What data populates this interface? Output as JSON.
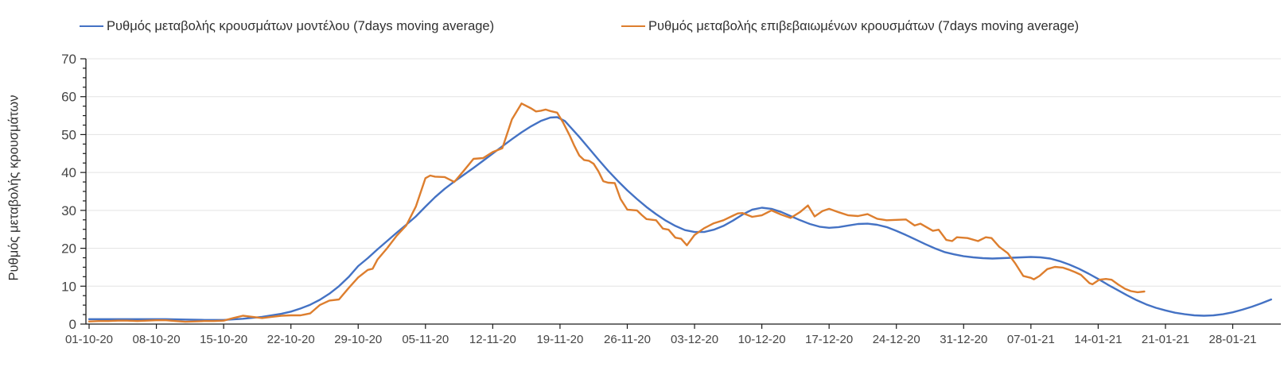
{
  "chart_data": {
    "type": "line",
    "title": "",
    "xlabel": "",
    "ylabel": "Ρυθμός μεταβολής κρουσμάτων",
    "ylim": [
      0,
      70
    ],
    "y_ticks": [
      0,
      10,
      20,
      30,
      40,
      50,
      60,
      70
    ],
    "y_minor_step": 2.5,
    "grid": "horizontal",
    "legend_position": "top",
    "x_unit": "days since 01-10-20",
    "x_range_days": [
      0,
      124
    ],
    "x_tick_days": [
      0,
      7,
      14,
      21,
      28,
      35,
      42,
      49,
      56,
      63,
      70,
      77,
      84,
      91,
      98,
      105,
      112,
      119
    ],
    "x_tick_labels": [
      "01-10-20",
      "08-10-20",
      "15-10-20",
      "22-10-20",
      "29-10-20",
      "05-11-20",
      "12-11-20",
      "19-11-20",
      "26-11-20",
      "03-12-20",
      "10-12-20",
      "17-12-20",
      "24-12-20",
      "31-12-20",
      "07-01-21",
      "14-01-21",
      "21-01-21",
      "28-01-21"
    ],
    "colors": {
      "model_line": "#4472c4",
      "confirmed_line": "#dd7e2e",
      "gridline": "#e3e3e3",
      "axis": "#1a1a1a",
      "tick_label": "#454545",
      "legend_text": "#303030"
    },
    "series": [
      {
        "name": "Ρυθμός μεταβολής κρουσμάτων μοντέλου (7days moving average)",
        "color": "#4472c4",
        "points": [
          [
            0,
            1.3
          ],
          [
            2,
            1.3
          ],
          [
            4,
            1.3
          ],
          [
            6,
            1.3
          ],
          [
            8,
            1.3
          ],
          [
            10,
            1.2
          ],
          [
            12,
            1.1
          ],
          [
            14,
            1.1
          ],
          [
            16,
            1.4
          ],
          [
            18,
            1.9
          ],
          [
            20,
            2.7
          ],
          [
            21,
            3.3
          ],
          [
            22,
            4.1
          ],
          [
            23,
            5.1
          ],
          [
            24,
            6.4
          ],
          [
            25,
            8.0
          ],
          [
            26,
            10.0
          ],
          [
            27,
            12.4
          ],
          [
            28,
            15.3
          ],
          [
            29,
            17.4
          ],
          [
            30,
            19.7
          ],
          [
            31,
            21.9
          ],
          [
            32,
            24.1
          ],
          [
            33,
            26.2
          ],
          [
            34,
            28.4
          ],
          [
            35,
            31.0
          ],
          [
            36,
            33.5
          ],
          [
            37,
            35.7
          ],
          [
            38,
            37.6
          ],
          [
            39,
            39.4
          ],
          [
            40,
            41.2
          ],
          [
            41,
            43.1
          ],
          [
            42,
            45.0
          ],
          [
            43,
            46.9
          ],
          [
            44,
            48.8
          ],
          [
            45,
            50.6
          ],
          [
            46,
            52.2
          ],
          [
            47,
            53.6
          ],
          [
            48,
            54.5
          ],
          [
            48.7,
            54.6
          ],
          [
            49.5,
            53.6
          ],
          [
            50,
            52.2
          ],
          [
            51,
            49.4
          ],
          [
            52,
            46.4
          ],
          [
            53,
            43.4
          ],
          [
            54,
            40.5
          ],
          [
            55,
            37.8
          ],
          [
            56,
            35.3
          ],
          [
            57,
            33.0
          ],
          [
            58,
            30.9
          ],
          [
            59,
            29.0
          ],
          [
            60,
            27.3
          ],
          [
            61,
            25.9
          ],
          [
            62,
            24.8
          ],
          [
            63,
            24.3
          ],
          [
            64,
            24.3
          ],
          [
            65,
            24.9
          ],
          [
            66,
            25.9
          ],
          [
            67,
            27.3
          ],
          [
            68,
            28.9
          ],
          [
            69,
            30.2
          ],
          [
            70,
            30.7
          ],
          [
            71,
            30.4
          ],
          [
            72,
            29.6
          ],
          [
            73,
            28.5
          ],
          [
            74,
            27.4
          ],
          [
            75,
            26.4
          ],
          [
            76,
            25.7
          ],
          [
            77,
            25.4
          ],
          [
            78,
            25.6
          ],
          [
            79,
            26.0
          ],
          [
            80,
            26.4
          ],
          [
            81,
            26.5
          ],
          [
            82,
            26.2
          ],
          [
            83,
            25.6
          ],
          [
            84,
            24.6
          ],
          [
            85,
            23.5
          ],
          [
            86,
            22.3
          ],
          [
            87,
            21.1
          ],
          [
            88,
            20.0
          ],
          [
            89,
            19.0
          ],
          [
            90,
            18.4
          ],
          [
            91,
            17.9
          ],
          [
            92,
            17.6
          ],
          [
            93,
            17.4
          ],
          [
            94,
            17.3
          ],
          [
            95,
            17.4
          ],
          [
            96,
            17.5
          ],
          [
            97,
            17.6
          ],
          [
            98,
            17.7
          ],
          [
            99,
            17.6
          ],
          [
            100,
            17.3
          ],
          [
            101,
            16.6
          ],
          [
            102,
            15.7
          ],
          [
            103,
            14.6
          ],
          [
            104,
            13.3
          ],
          [
            105,
            11.9
          ],
          [
            106,
            10.4
          ],
          [
            107,
            9.0
          ],
          [
            108,
            7.6
          ],
          [
            109,
            6.3
          ],
          [
            110,
            5.2
          ],
          [
            111,
            4.3
          ],
          [
            112,
            3.6
          ],
          [
            113,
            3.0
          ],
          [
            114,
            2.6
          ],
          [
            115,
            2.3
          ],
          [
            116,
            2.2
          ],
          [
            117,
            2.3
          ],
          [
            118,
            2.6
          ],
          [
            119,
            3.1
          ],
          [
            120,
            3.8
          ],
          [
            121,
            4.6
          ],
          [
            122,
            5.5
          ],
          [
            123,
            6.5
          ]
        ]
      },
      {
        "name": "Ρυθμός μεταβολής επιβεβαιωμένων κρουσμάτων (7days moving average)",
        "color": "#dd7e2e",
        "points": [
          [
            0,
            0.7
          ],
          [
            1,
            0.8
          ],
          [
            2,
            0.8
          ],
          [
            3,
            0.9
          ],
          [
            4,
            0.9
          ],
          [
            5,
            0.8
          ],
          [
            6,
            0.9
          ],
          [
            7,
            1.0
          ],
          [
            8,
            1.0
          ],
          [
            9,
            0.8
          ],
          [
            10,
            0.6
          ],
          [
            11,
            0.7
          ],
          [
            12,
            0.8
          ],
          [
            13,
            0.8
          ],
          [
            14,
            0.9
          ],
          [
            15,
            1.6
          ],
          [
            16,
            2.2
          ],
          [
            17,
            1.9
          ],
          [
            18,
            1.6
          ],
          [
            19,
            1.9
          ],
          [
            20,
            2.2
          ],
          [
            21,
            2.3
          ],
          [
            22,
            2.3
          ],
          [
            23,
            2.8
          ],
          [
            24,
            5.0
          ],
          [
            25,
            6.2
          ],
          [
            26,
            6.5
          ],
          [
            27,
            9.5
          ],
          [
            28,
            12.3
          ],
          [
            29,
            14.3
          ],
          [
            29.5,
            14.6
          ],
          [
            30,
            17.0
          ],
          [
            31,
            20.0
          ],
          [
            32,
            23.3
          ],
          [
            33,
            26.0
          ],
          [
            34,
            31.0
          ],
          [
            35,
            38.5
          ],
          [
            35.5,
            39.2
          ],
          [
            36,
            38.9
          ],
          [
            37,
            38.8
          ],
          [
            38,
            37.5
          ],
          [
            39,
            40.5
          ],
          [
            40,
            43.6
          ],
          [
            41,
            43.8
          ],
          [
            42,
            45.4
          ],
          [
            43,
            46.4
          ],
          [
            44,
            54.0
          ],
          [
            45,
            58.2
          ],
          [
            46,
            56.9
          ],
          [
            46.5,
            56.1
          ],
          [
            47,
            56.3
          ],
          [
            47.5,
            56.6
          ],
          [
            48,
            56.2
          ],
          [
            48.7,
            55.8
          ],
          [
            49.3,
            53.3
          ],
          [
            50,
            49.8
          ],
          [
            50.5,
            47.0
          ],
          [
            51,
            44.5
          ],
          [
            51.5,
            43.3
          ],
          [
            52,
            43.1
          ],
          [
            52.5,
            42.3
          ],
          [
            53,
            40.3
          ],
          [
            53.5,
            37.7
          ],
          [
            54,
            37.3
          ],
          [
            54.7,
            37.2
          ],
          [
            55.3,
            33.0
          ],
          [
            56,
            30.2
          ],
          [
            57,
            30.0
          ],
          [
            57.5,
            28.8
          ],
          [
            58,
            27.7
          ],
          [
            59,
            27.4
          ],
          [
            59.7,
            25.2
          ],
          [
            60.3,
            24.9
          ],
          [
            61,
            22.8
          ],
          [
            61.6,
            22.5
          ],
          [
            62.2,
            20.8
          ],
          [
            63,
            23.5
          ],
          [
            64,
            25.3
          ],
          [
            65,
            26.6
          ],
          [
            66,
            27.4
          ],
          [
            67,
            28.6
          ],
          [
            67.5,
            29.2
          ],
          [
            68,
            29.3
          ],
          [
            69,
            28.3
          ],
          [
            70,
            28.7
          ],
          [
            71,
            30.0
          ],
          [
            72,
            28.9
          ],
          [
            73,
            28.0
          ],
          [
            74,
            29.6
          ],
          [
            74.8,
            31.3
          ],
          [
            75.5,
            28.4
          ],
          [
            76.3,
            29.8
          ],
          [
            77,
            30.4
          ],
          [
            78,
            29.5
          ],
          [
            79,
            28.7
          ],
          [
            80,
            28.5
          ],
          [
            81,
            29.0
          ],
          [
            82,
            27.8
          ],
          [
            83,
            27.4
          ],
          [
            84,
            27.5
          ],
          [
            85,
            27.6
          ],
          [
            85.9,
            26.0
          ],
          [
            86.5,
            26.5
          ],
          [
            87.8,
            24.6
          ],
          [
            88.4,
            24.9
          ],
          [
            89.2,
            22.2
          ],
          [
            89.8,
            21.9
          ],
          [
            90.3,
            22.9
          ],
          [
            91.4,
            22.7
          ],
          [
            92.5,
            21.9
          ],
          [
            93.3,
            22.9
          ],
          [
            93.9,
            22.7
          ],
          [
            94.7,
            20.4
          ],
          [
            95.6,
            18.7
          ],
          [
            96.4,
            15.9
          ],
          [
            97.2,
            12.7
          ],
          [
            98,
            12.2
          ],
          [
            98.3,
            11.8
          ],
          [
            98.9,
            12.7
          ],
          [
            99.7,
            14.5
          ],
          [
            100.5,
            15.1
          ],
          [
            101.3,
            14.9
          ],
          [
            101.9,
            14.4
          ],
          [
            102.6,
            13.7
          ],
          [
            103.2,
            13.0
          ],
          [
            104.1,
            10.8
          ],
          [
            104.4,
            10.5
          ],
          [
            105.1,
            11.7
          ],
          [
            105.8,
            11.9
          ],
          [
            106.4,
            11.7
          ],
          [
            107.1,
            10.4
          ],
          [
            107.8,
            9.3
          ],
          [
            108.4,
            8.7
          ],
          [
            109.1,
            8.4
          ],
          [
            109.8,
            8.6
          ]
        ]
      }
    ]
  }
}
